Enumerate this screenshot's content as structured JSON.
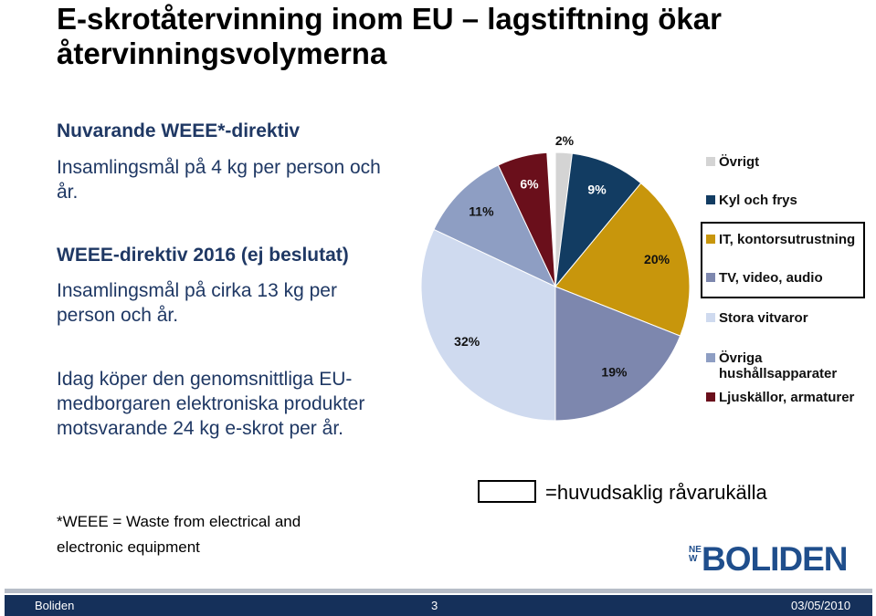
{
  "header": {
    "title": "E-skrotåtervinning inom EU – lagstiftning ökar återvinningsvolymerna"
  },
  "body": {
    "blocks": [
      {
        "heading": "Nuvarande WEEE*-direktiv",
        "text": "Insamlingsmål på 4 kg per person och år."
      },
      {
        "heading": "WEEE-direktiv 2016 (ej beslutat)",
        "text": "Insamlingsmål på cirka 13 kg per person och år."
      },
      {
        "text": "Idag köper den genomsnittliga EU-medborgaren elektroniska produkter motsvarande 24 kg e-skrot per år."
      }
    ],
    "footnote": "*WEEE = Waste from electrical and electronic equipment",
    "box_note": "=huvudsaklig råvarukälla"
  },
  "chart_data": {
    "type": "pie",
    "categories": [
      "Övrigt",
      "Kyl och frys",
      "IT, kontorsutrustning",
      "TV, video, audio",
      "Stora vitvaror",
      "Övriga hushållsapparater",
      "Ljuskällor, armaturer"
    ],
    "values": [
      2,
      9,
      20,
      19,
      32,
      11,
      6
    ],
    "value_labels": [
      "2%",
      "9%",
      "20%",
      "19%",
      "32%",
      "11%",
      "6%"
    ],
    "colors": [
      "#d4d4d4",
      "#123c62",
      "#c8960c",
      "#7d87ae",
      "#cfdaef",
      "#8e9ec3",
      "#6a0f1b"
    ],
    "legend": "right"
  },
  "logo": {
    "prefix": "NEW",
    "name": "BOLIDEN"
  },
  "footer": {
    "left": "Boliden",
    "page": "3",
    "date": "03/05/2010"
  }
}
